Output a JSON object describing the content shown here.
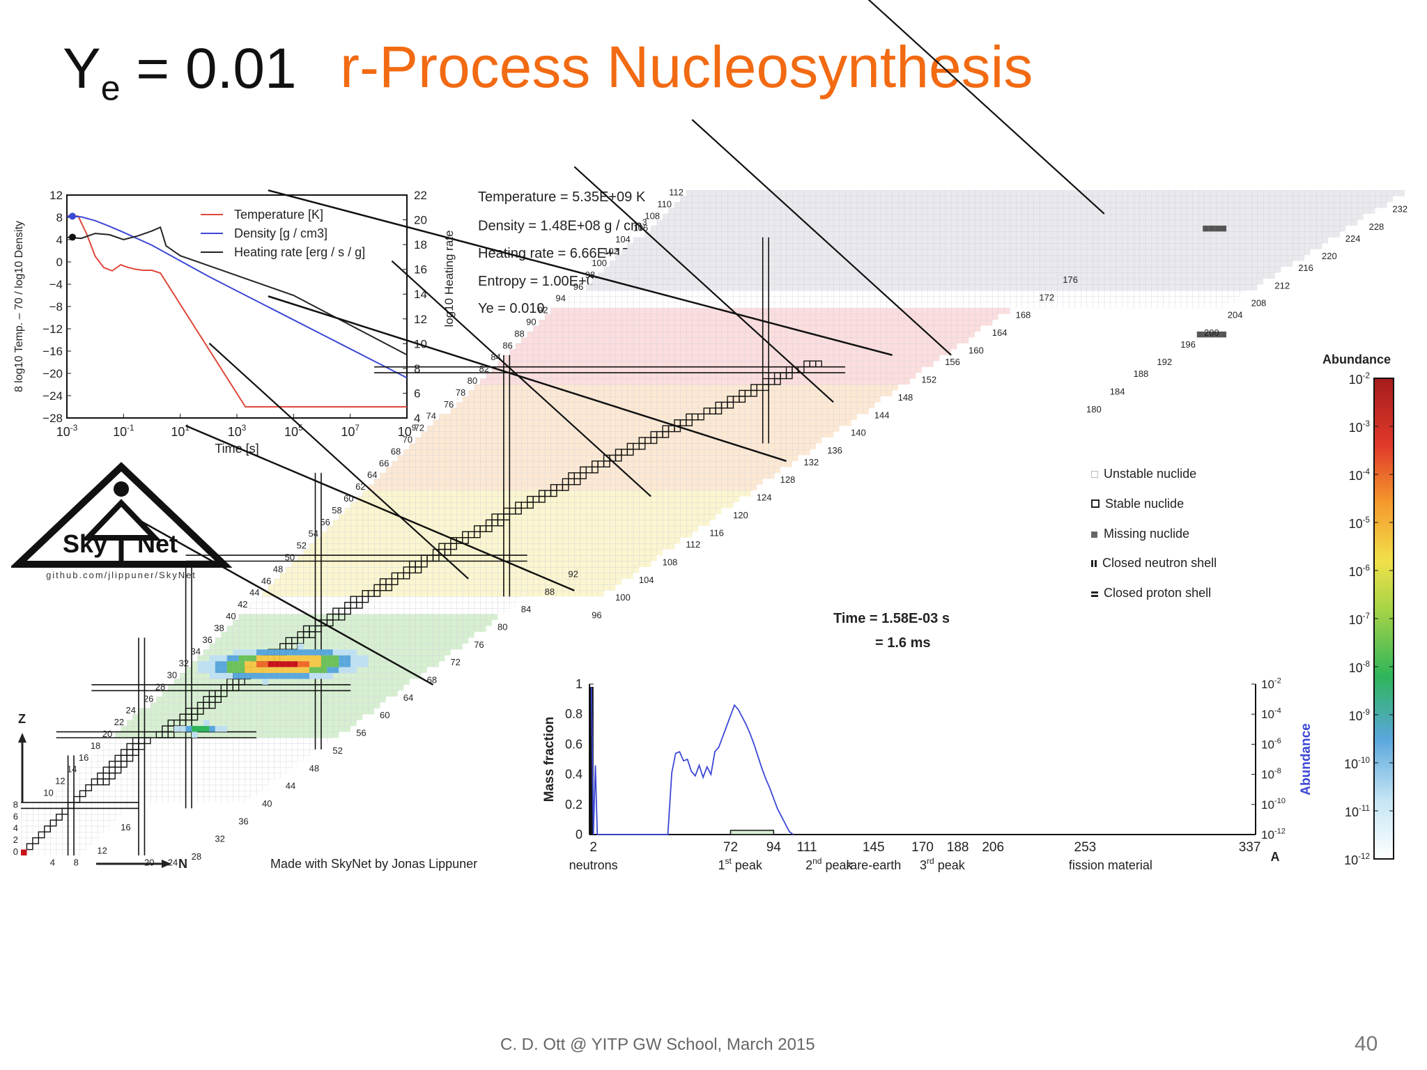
{
  "slide": {
    "ye_title": "Y",
    "ye_sub": "e",
    "ye_value": " = 0.01",
    "title": "r-Process Nucleosynthesis",
    "footer": "C. D. Ott @ YITP GW School,  March 2015",
    "page_number": "40"
  },
  "colors": {
    "title": "#f26a12",
    "temperature": "#e0473a",
    "density": "#3b47d4",
    "heating": "#222222"
  },
  "conditions": {
    "temperature": "Temperature = 5.35E+09 K",
    "density_prefix": "Density = 1.48E+08 g / cm",
    "density_sup": "3",
    "heating": "Heating rate = 6.66E+17 erg / s / g",
    "entropy": "Entropy = 1.00E+01 kB / baryon",
    "ye": "Ye = 0.010"
  },
  "time": {
    "line1": "Time = 1.58E-03 s",
    "line2": "= 1.6 ms"
  },
  "legend": {
    "unstable": "Unstable nuclide",
    "stable": "Stable nuclide",
    "missing": "Missing nuclide",
    "neutron_shell": "Closed neutron shell",
    "proton_shell": "Closed proton shell"
  },
  "logo": {
    "sky": "Sky",
    "net": "Net",
    "url": "github.com/jlippuner/SkyNet"
  },
  "credit": "Made with SkyNet by Jonas Lippuner",
  "chart_axes": {
    "z": "Z",
    "n": "N"
  },
  "z_labels": [
    "0",
    "2",
    "4",
    "6",
    "8",
    "10",
    "12",
    "14",
    "16",
    "18",
    "20",
    "22",
    "24",
    "26",
    "28",
    "30",
    "32",
    "34",
    "36",
    "38",
    "40",
    "42",
    "44",
    "46",
    "48",
    "50",
    "52",
    "54",
    "56",
    "58",
    "60",
    "62",
    "64",
    "66",
    "68",
    "70",
    "72",
    "74",
    "76",
    "78",
    "80",
    "82",
    "84",
    "86",
    "88",
    "90",
    "92",
    "94",
    "96",
    "98",
    "100",
    "102",
    "104",
    "106",
    "108",
    "110",
    "112"
  ],
  "n_labels": [
    "4",
    "8",
    "12",
    "16",
    "20",
    "24",
    "28",
    "32",
    "36",
    "40",
    "44",
    "48",
    "52",
    "56",
    "60",
    "64",
    "68",
    "72",
    "76",
    "80",
    "84",
    "88",
    "92",
    "96",
    "100",
    "104",
    "108",
    "112",
    "116",
    "120",
    "124",
    "128",
    "132",
    "136",
    "140",
    "144",
    "148",
    "152",
    "156",
    "160",
    "164",
    "168",
    "172",
    "176",
    "180",
    "184",
    "188",
    "192",
    "196",
    "200",
    "204",
    "208",
    "212",
    "216",
    "220",
    "224",
    "228",
    "232"
  ],
  "colorbar": {
    "title": "Abundance",
    "ticks": [
      "-2",
      "-3",
      "-4",
      "-5",
      "-6",
      "-7",
      "-8",
      "-9",
      "-10",
      "-11",
      "-12"
    ]
  },
  "chart_data": [
    {
      "type": "line",
      "xlabel": "Time [s]",
      "ylabel_left": "8 log10 Temp. – 70  /  log10 Density",
      "ylabel_right": "log10 Heating rate",
      "x_scale": "log",
      "xlim_log10": [
        -3,
        9
      ],
      "x_ticks": [
        "-3",
        "-1",
        "1",
        "3",
        "5",
        "7",
        "9"
      ],
      "ylim_left": [
        -28,
        12
      ],
      "y_ticks_left": [
        "12",
        "8",
        "4",
        "0",
        "−4",
        "−8",
        "−12",
        "−16",
        "−20",
        "−24",
        "−28"
      ],
      "ylim_right": [
        4,
        22
      ],
      "y_ticks_right": [
        "22",
        "20",
        "18",
        "16",
        "14",
        "12",
        "10",
        "8",
        "6",
        "4"
      ],
      "legend_position": "top-right",
      "series": [
        {
          "name": "Temperature [K]",
          "axis": "left",
          "log10_x": [
            -3.0,
            -2.6,
            -2.3,
            -2.0,
            -1.7,
            -1.4,
            -1.1,
            -0.9,
            -0.6,
            -0.3,
            0.0,
            0.3,
            3.3,
            9.0
          ],
          "y": [
            8.3,
            8.2,
            5.0,
            1.0,
            -1.0,
            -1.6,
            -0.5,
            -0.9,
            -1.3,
            -1.5,
            -1.5,
            -2.0,
            -26.0,
            -26.0
          ]
        },
        {
          "name": "Density [g / cm3]",
          "axis": "left",
          "log10_x": [
            -3.0,
            -2.5,
            -2.0,
            -1.5,
            -1.0,
            0.0,
            1.0,
            2.0,
            3.0,
            4.0,
            5.0,
            6.0,
            7.0,
            8.0,
            9.0
          ],
          "y": [
            8.2,
            8.1,
            7.4,
            6.4,
            5.3,
            3.0,
            0.2,
            -2.6,
            -5.2,
            -7.8,
            -10.4,
            -13.0,
            -15.6,
            -18.2,
            -20.8
          ]
        },
        {
          "name": "Heating rate [erg / s / g]",
          "axis": "right",
          "log10_x": [
            -3.0,
            -2.5,
            -2.0,
            -1.5,
            -1.0,
            -0.5,
            0.0,
            0.3,
            0.5,
            1.0,
            1.5,
            2.0,
            3.0,
            4.0,
            5.0,
            6.0,
            7.0,
            8.0,
            9.0
          ],
          "y": [
            18.6,
            18.5,
            18.9,
            18.8,
            18.4,
            18.7,
            19.1,
            19.4,
            17.9,
            17.1,
            16.7,
            16.3,
            15.5,
            14.7,
            13.9,
            12.7,
            11.5,
            10.3,
            9.1
          ]
        }
      ]
    },
    {
      "type": "line",
      "xlabel": "A",
      "ylabel_left": "Mass fraction",
      "ylabel_right": "Abundance",
      "xlim": [
        0,
        340
      ],
      "ylim_left": [
        0,
        1
      ],
      "y_ticks_left": [
        "1",
        "0.8",
        "0.6",
        "0.4",
        "0.2",
        "0"
      ],
      "y_ticks_right": [
        "-2",
        "-4",
        "-6",
        "-8",
        "-10",
        "-12"
      ],
      "x_ticks": [
        "2",
        "72",
        "94",
        "111",
        "145",
        "170",
        "188",
        "206",
        "253",
        "337"
      ],
      "region_labels": [
        {
          "text": "neutrons",
          "sup": ""
        },
        {
          "text": "1",
          "sup": "st",
          "after": " peak"
        },
        {
          "text": "2",
          "sup": "nd",
          "after": " peak"
        },
        {
          "text": "rare-earth",
          "sup": ""
        },
        {
          "text": "3",
          "sup": "rd",
          "after": " peak"
        },
        {
          "text": "fission material",
          "sup": ""
        }
      ],
      "series": [
        {
          "name": "Abundance",
          "axis": "right",
          "A": [
            1,
            2,
            3,
            4,
            5,
            6,
            40,
            42,
            44,
            46,
            48,
            50,
            52,
            54,
            56,
            58,
            60,
            62,
            64,
            66,
            68,
            70,
            72,
            74,
            76,
            78,
            80,
            82,
            84,
            86,
            88,
            90,
            92,
            94,
            96,
            98,
            100,
            102,
            104
          ],
          "log10_y": [
            -2.2,
            -12,
            -7.4,
            -12,
            -12,
            -12,
            -12,
            -7.9,
            -6.6,
            -6.5,
            -7.1,
            -7.0,
            -7.8,
            -8.1,
            -7.4,
            -8.2,
            -7.5,
            -8.0,
            -6.5,
            -6.2,
            -5.5,
            -4.8,
            -4.1,
            -3.4,
            -3.7,
            -4.2,
            -4.7,
            -5.3,
            -6.0,
            -6.8,
            -7.6,
            -8.3,
            -8.9,
            -9.6,
            -10.3,
            -10.8,
            -11.3,
            -11.8,
            -12
          ]
        }
      ]
    }
  ]
}
